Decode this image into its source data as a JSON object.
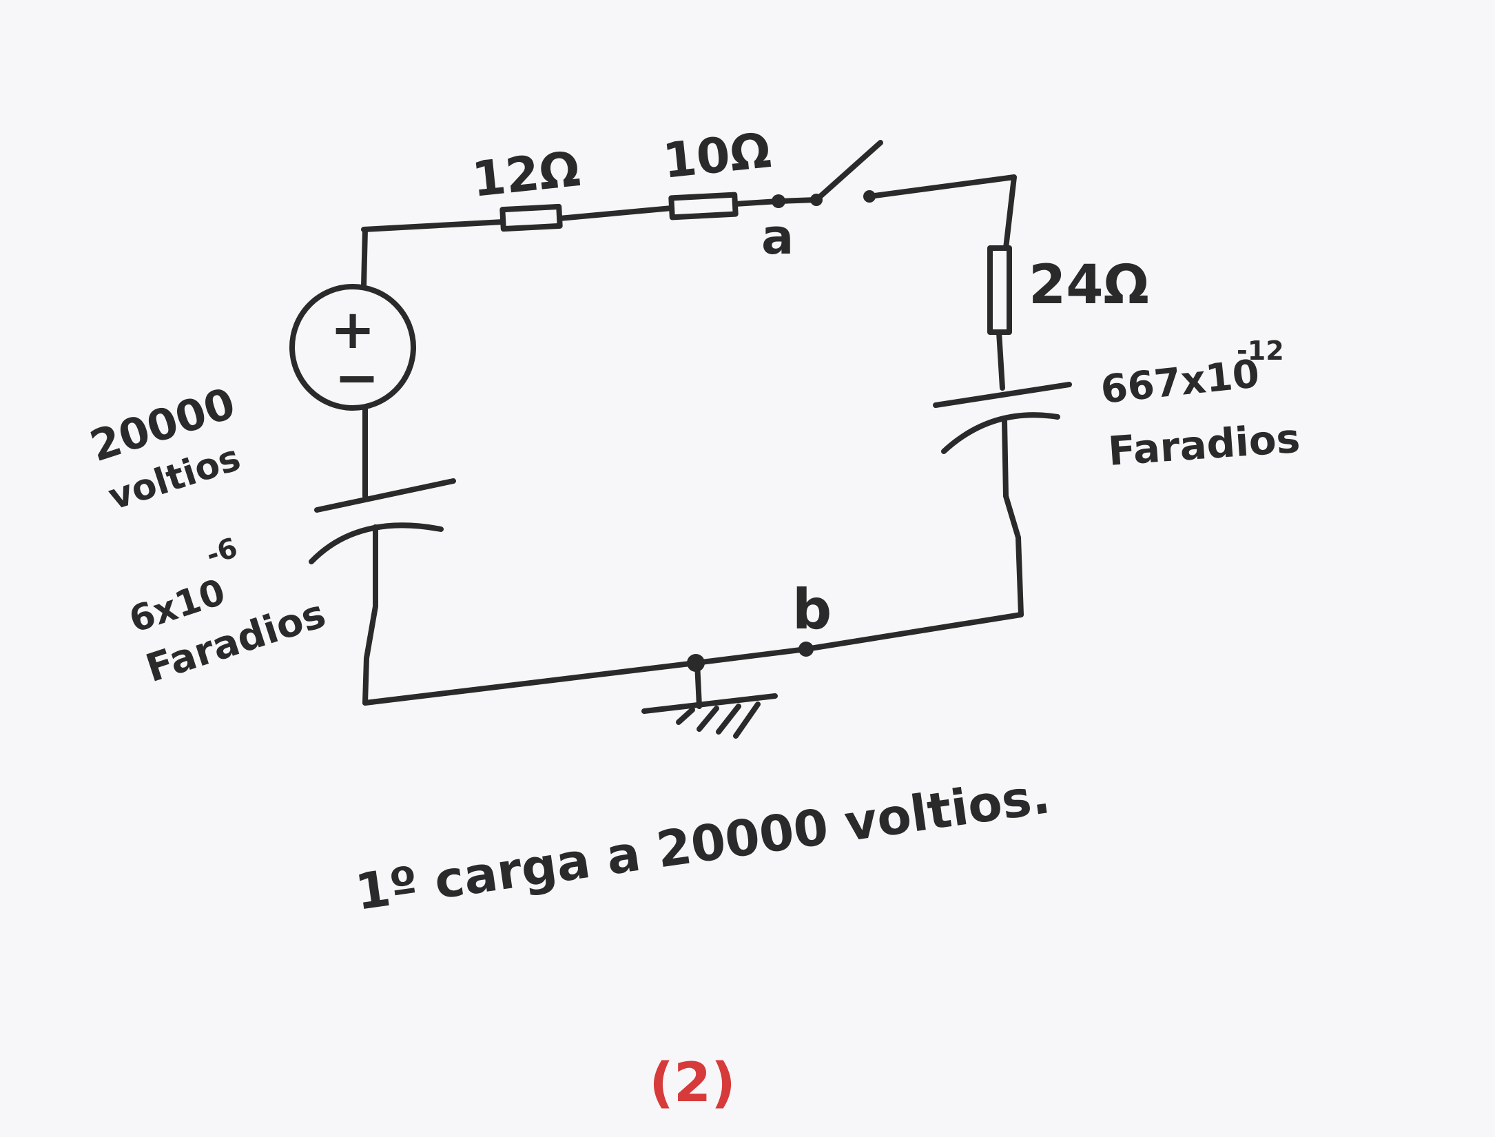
{
  "circuit": {
    "resistor_1_label": "12Ω",
    "resistor_2_label": "10Ω",
    "resistor_3_label": "24Ω",
    "node_a_label": "a",
    "node_b_label": "b",
    "source_plus": "+",
    "source_minus": "−",
    "source_value": "20000",
    "source_unit": "voltios",
    "capacitor_left_value": "6x10",
    "capacitor_left_exponent": "-6",
    "capacitor_left_unit": "Faradios",
    "capacitor_right_value": "667x10",
    "capacitor_right_exponent": "-12",
    "capacitor_right_unit": "Faradios"
  },
  "note": "1º carga a 20000 voltios.",
  "page_number": "(2)",
  "colors": {
    "ink": "#2a2a2a",
    "page_number": "#d63a3a",
    "paper": "#f7f6f8"
  }
}
